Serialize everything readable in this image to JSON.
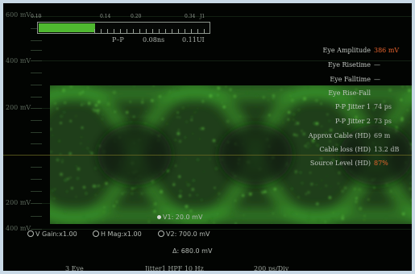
{
  "y_axis": {
    "labels": [
      "600 mV",
      "400 mV",
      "200 mV",
      "200 mV",
      "400 mV"
    ]
  },
  "meter": {
    "fraction": 0.33,
    "ticks": [
      "0.10",
      "0.14",
      "0.20",
      "0.34",
      "J1"
    ],
    "pp_label": "P–P",
    "pp_ns": "0.08ns",
    "pp_ui": "0.11UI"
  },
  "measurements": [
    {
      "label": "Eye Amplitude",
      "value": "386 mV",
      "color": "#e8632e"
    },
    {
      "label": "Eye Risetime",
      "value": "—",
      "color": "#b6bcb6"
    },
    {
      "label": "Eye Falltime",
      "value": "—",
      "color": "#b6bcb6"
    },
    {
      "label": "Eye Rise-Fall",
      "value": "",
      "color": "#b6bcb6"
    },
    {
      "label": "P-P Jitter 1",
      "value": "74 ps",
      "color": "#b6bcb6"
    },
    {
      "label": "P-P Jitter 2",
      "value": "73 ps",
      "color": "#b6bcb6"
    },
    {
      "label": "Approx Cable (HD)",
      "value": "69 m",
      "color": "#b6bcb6"
    },
    {
      "label": "Cable loss (HD)",
      "value": "13.2 dB",
      "color": "#b6bcb6"
    },
    {
      "label": "Source Level (HD)",
      "value": "87%",
      "color": "#e8632e"
    }
  ],
  "cursors": {
    "v1": "V1: 20.0 mV",
    "v_gain": "V Gain:x1.00",
    "h_mag": "H Mag:x1.00",
    "v2": "V2: 700.0 mV",
    "delta": "Δ: 680.0 mV"
  },
  "footer": {
    "mode": "3 Eye",
    "filter": "Jitter1 HPF 10 Hz",
    "timebase": "200 ps/Div"
  },
  "colors": {
    "trace": "#3fae2c",
    "accent": "#e8632e",
    "midline": "#6b6a22"
  }
}
